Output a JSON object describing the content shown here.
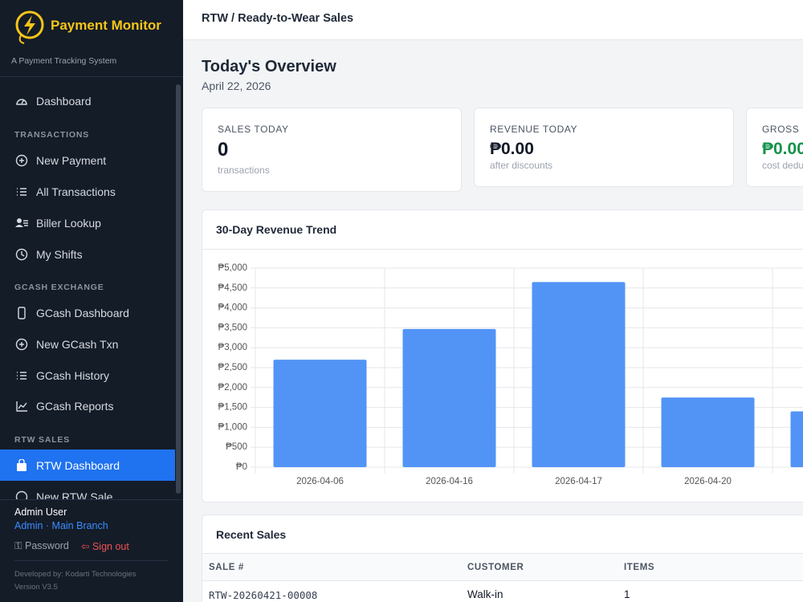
{
  "brand": {
    "name": "Payment Monitor",
    "tagline": "A Payment Tracking System"
  },
  "nav": {
    "top": [
      "Dashboard"
    ],
    "sections": [
      {
        "title": "TRANSACTIONS",
        "items": [
          "New Payment",
          "All Transactions",
          "Biller Lookup",
          "My Shifts"
        ]
      },
      {
        "title": "GCASH EXCHANGE",
        "items": [
          "GCash Dashboard",
          "New GCash Txn",
          "GCash History",
          "GCash Reports"
        ]
      },
      {
        "title": "RTW SALES",
        "items": [
          "RTW Dashboard",
          "New RTW Sale"
        ]
      }
    ]
  },
  "user": {
    "name": "Admin User",
    "role": "Admin · Main Branch",
    "password": "Password",
    "signout": "Sign out"
  },
  "footer": {
    "developer": "Developed by: Kodarti Technologies",
    "version": "Version V3.5"
  },
  "header": {
    "breadcrumb": "RTW / Ready-to-Wear Sales"
  },
  "overview": {
    "title": "Today's Overview",
    "date": "April 22, 2026",
    "cards": [
      {
        "label": "SALES TODAY",
        "value": "0",
        "note": "transactions"
      },
      {
        "label": "REVENUE TODAY",
        "value": "₱0.00",
        "note": "after discounts"
      },
      {
        "label": "GROSS P",
        "value": "₱0.00",
        "note": "cost dedu"
      }
    ]
  },
  "chart_data": {
    "type": "bar",
    "title": "30-Day Revenue Trend",
    "categories": [
      "2026-04-06",
      "2026-04-16",
      "2026-04-17",
      "2026-04-20",
      null
    ],
    "values": [
      2700,
      3470,
      4650,
      1750,
      1400
    ],
    "color": "#5294f6",
    "ylim": [
      0,
      5000
    ],
    "yticks": [
      {
        "value": 0,
        "label": "₱0"
      },
      {
        "value": 500,
        "label": "₱500"
      },
      {
        "value": 1000,
        "label": "₱1,000"
      },
      {
        "value": 1500,
        "label": "₱1,500"
      },
      {
        "value": 2000,
        "label": "₱2,000"
      },
      {
        "value": 2500,
        "label": "₱2,500"
      },
      {
        "value": 3000,
        "label": "₱3,000"
      },
      {
        "value": 3500,
        "label": "₱3,500"
      },
      {
        "value": 4000,
        "label": "₱4,000"
      },
      {
        "value": 4500,
        "label": "₱4,500"
      },
      {
        "value": 5000,
        "label": "₱5,000"
      }
    ],
    "grid": true
  },
  "recent_sales": {
    "title": "Recent Sales",
    "columns": [
      "SALE #",
      "CUSTOMER",
      "ITEMS"
    ],
    "rows": [
      [
        "RTW-20260421-00008",
        "Walk-in",
        "1"
      ]
    ]
  }
}
